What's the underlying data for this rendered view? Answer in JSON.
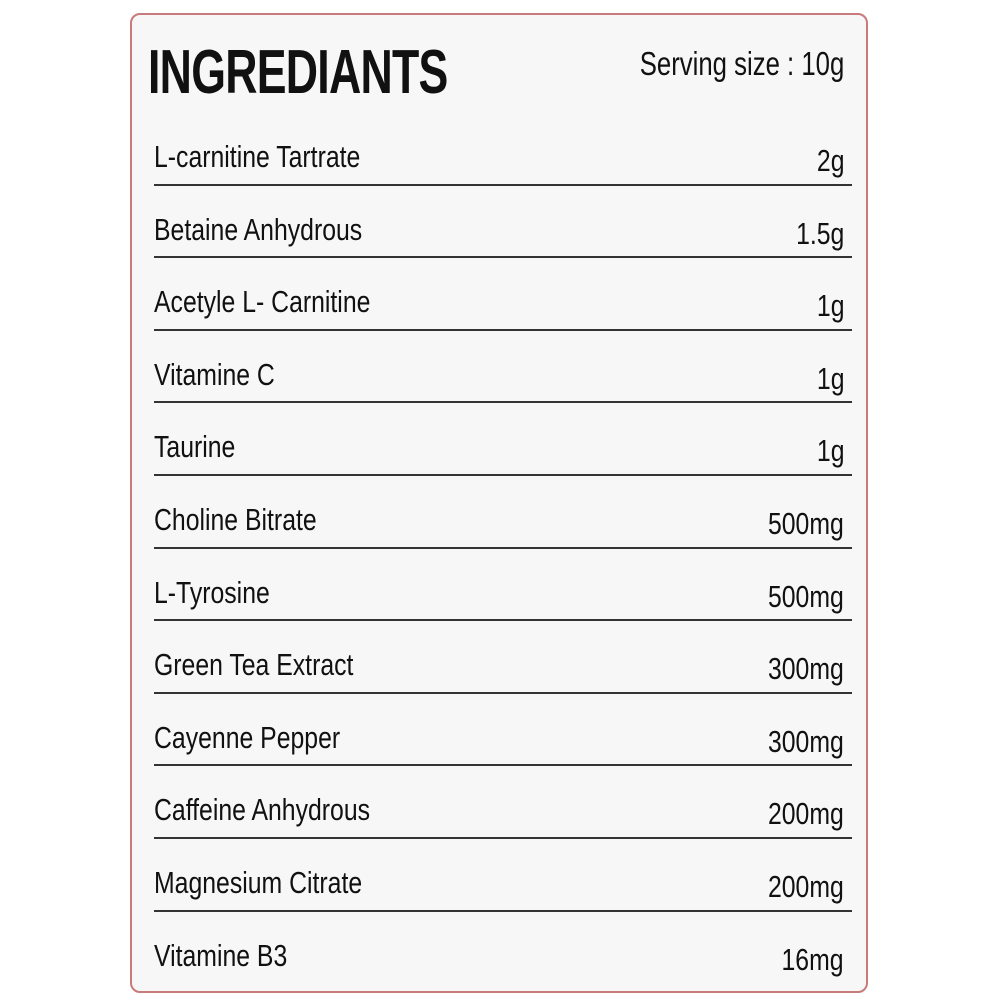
{
  "header": {
    "title": "INGREDIANTS",
    "serving_size": "Serving size : 10g"
  },
  "colors": {
    "border": "#c97a7a",
    "background": "#f7f7f7",
    "text": "#111111"
  },
  "ingredients": [
    {
      "name": "L-carnitine Tartrate",
      "amount": "2g"
    },
    {
      "name": "Betaine Anhydrous",
      "amount": "1.5g"
    },
    {
      "name": "Acetyle L- Carnitine",
      "amount": "1g"
    },
    {
      "name": "Vitamine C",
      "amount": "1g"
    },
    {
      "name": "Taurine",
      "amount": "1g"
    },
    {
      "name": "Choline Bitrate",
      "amount": "500mg"
    },
    {
      "name": "L-Tyrosine",
      "amount": "500mg"
    },
    {
      "name": "Green Tea Extract",
      "amount": "300mg"
    },
    {
      "name": "Cayenne Pepper",
      "amount": "300mg"
    },
    {
      "name": "Caffeine Anhydrous",
      "amount": "200mg"
    },
    {
      "name": "Magnesium Citrate",
      "amount": "200mg"
    },
    {
      "name": "Vitamine B3",
      "amount": "16mg"
    }
  ]
}
